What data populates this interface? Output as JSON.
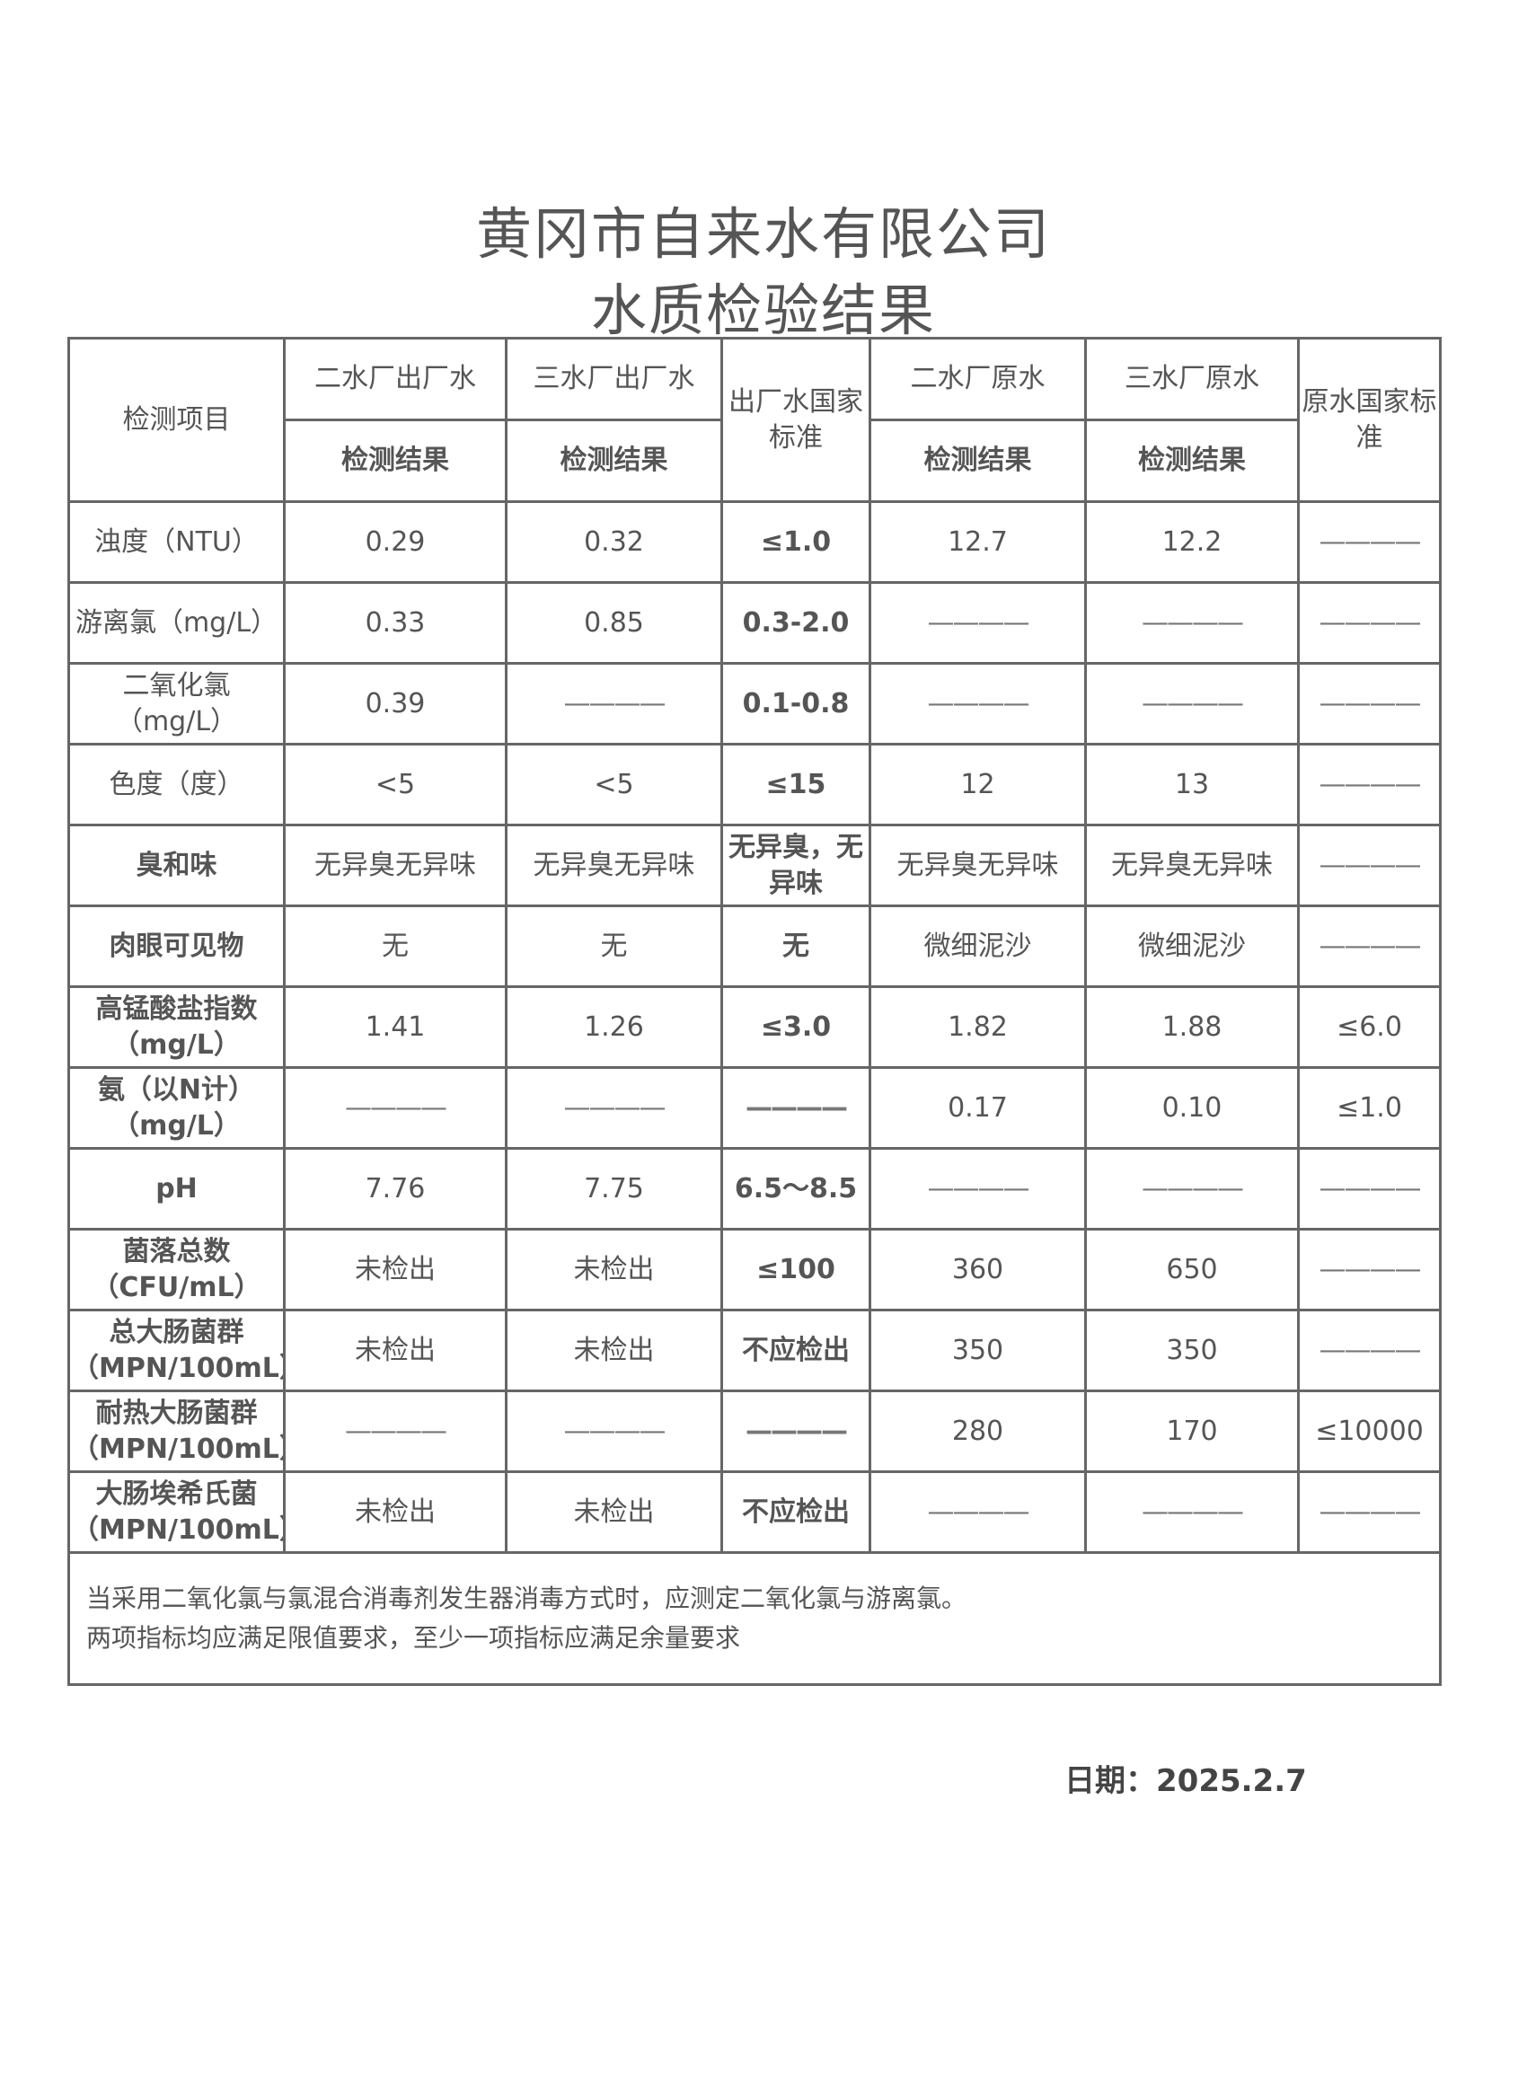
{
  "title": "黄冈市自来水有限公司",
  "subtitle": "水质检验结果",
  "table": {
    "header": {
      "item": "检测项目",
      "col1": "二水厂出厂水",
      "col2": "三水厂出厂水",
      "std_out": "出厂水国家标准",
      "col3": "二水厂原水",
      "col4": "三水厂原水",
      "std_raw": "原水国家标准",
      "result": "检测结果"
    },
    "rows": [
      {
        "item": "浊度（NTU）",
        "v": [
          "0.29",
          "0.32",
          "≤1.0",
          "12.7",
          "12.2",
          "————"
        ]
      },
      {
        "item": "游离氯（mg/L）",
        "v": [
          "0.33",
          "0.85",
          "0.3-2.0",
          "————",
          "————",
          "————"
        ]
      },
      {
        "item": "二氧化氯（mg/L）",
        "v": [
          "0.39",
          "————",
          "0.1-0.8",
          "————",
          "————",
          "————"
        ]
      },
      {
        "item": "色度（度）",
        "v": [
          "<5",
          "<5",
          "≤15",
          "12",
          "13",
          "————"
        ]
      },
      {
        "item": "臭和味",
        "v": [
          "无异臭无异味",
          "无异臭无异味",
          "无异臭，无异味",
          "无异臭无异味",
          "无异臭无异味",
          "————"
        ]
      },
      {
        "item": "肉眼可见物",
        "v": [
          "无",
          "无",
          "无",
          "微细泥沙",
          "微细泥沙",
          "————"
        ]
      },
      {
        "item": "高锰酸盐指数（mg/L）",
        "v": [
          "1.41",
          "1.26",
          "≤3.0",
          "1.82",
          "1.88",
          "≤6.0"
        ]
      },
      {
        "item": "氨（以N计）（mg/L）",
        "v": [
          "————",
          "————",
          "————",
          "0.17",
          "0.10",
          "≤1.0"
        ]
      },
      {
        "item": "pH",
        "v": [
          "7.76",
          "7.75",
          "6.5～8.5",
          "————",
          "————",
          "————"
        ]
      },
      {
        "item": "菌落总数（CFU/mL）",
        "v": [
          "未检出",
          "未检出",
          "≤100",
          "360",
          "650",
          "————"
        ]
      },
      {
        "item": "总大肠菌群（MPN/100mL）",
        "v": [
          "未检出",
          "未检出",
          "不应检出",
          "350",
          "350",
          "————"
        ]
      },
      {
        "item": "耐热大肠菌群（MPN/100mL）",
        "v": [
          "————",
          "————",
          "————",
          "280",
          "170",
          "≤10000"
        ]
      },
      {
        "item": "大肠埃希氏菌（MPN/100mL）",
        "v": [
          "未检出",
          "未检出",
          "不应检出",
          "————",
          "————",
          "————"
        ]
      }
    ],
    "note_line1": "当采用二氧化氯与氯混合消毒剂发生器消毒方式时，应测定二氧化氯与游离氯。",
    "note_line2": "两项指标均应满足限值要求，至少一项指标应满足余量要求"
  },
  "date": "日期：2025.2.7"
}
